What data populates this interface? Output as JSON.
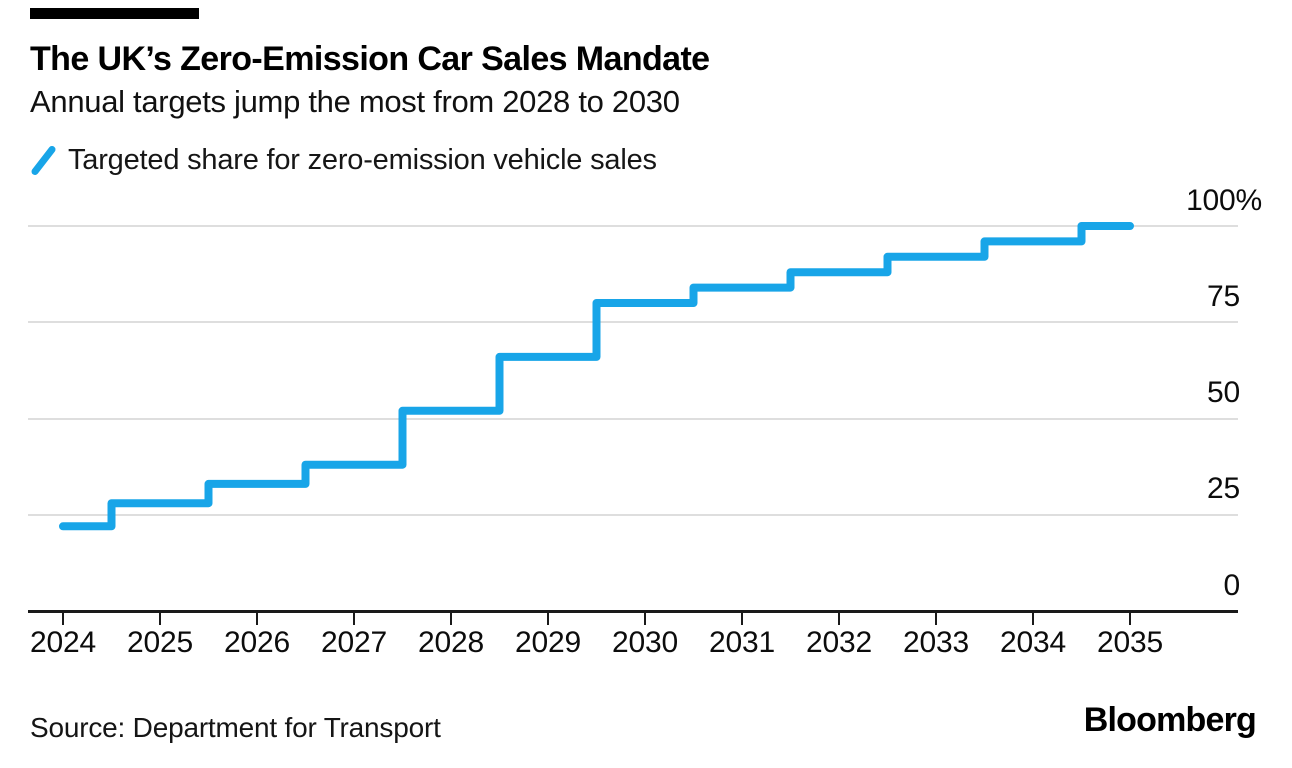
{
  "header": {
    "title": "The UK’s Zero-Emission Car Sales Mandate",
    "subtitle": "Annual targets jump the most from 2028 to 2030"
  },
  "legend": {
    "label": "Targeted share for zero-emission vehicle sales"
  },
  "chart_data": {
    "type": "line",
    "style": "step-mid",
    "title": "The UK’s Zero-Emission Car Sales Mandate",
    "subtitle": "Annual targets jump the most from 2028 to 2030",
    "series": [
      {
        "name": "Targeted share for zero-emission vehicle sales",
        "color": "#18A5E8",
        "x": [
          2024,
          2025,
          2026,
          2027,
          2028,
          2029,
          2030,
          2031,
          2032,
          2033,
          2034,
          2035
        ],
        "values": [
          22,
          28,
          33,
          38,
          52,
          66,
          80,
          84,
          88,
          92,
          96,
          100
        ]
      }
    ],
    "unit": "%",
    "ylim": [
      0,
      100
    ],
    "yticks": [
      0,
      25,
      50,
      75,
      100
    ],
    "ytick_labels": [
      "0",
      "25",
      "50",
      "75",
      "100%"
    ],
    "xtick_labels": [
      "2024",
      "2025",
      "2026",
      "2027",
      "2028",
      "2029",
      "2030",
      "2031",
      "2032",
      "2033",
      "2034",
      "2035"
    ],
    "grid": "horizontal",
    "legend_position": "top-left"
  },
  "footer": {
    "source": "Source: Department for Transport",
    "brand": "Bloomberg"
  },
  "colors": {
    "line": "#18A5E8",
    "grid": "#dedede",
    "axis": "#1a1a1a",
    "text": "#000000"
  }
}
